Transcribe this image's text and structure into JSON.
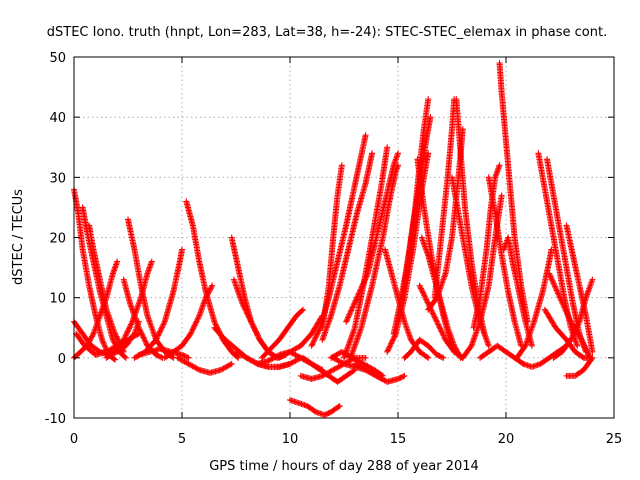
{
  "chart_data": {
    "type": "scatter",
    "title": "dSTEC Iono. truth (hnpt, Lon=283, Lat=38, h=-24): STEC-STEC_elemax in phase cont.",
    "xlabel": "GPS time / hours of day 288 of year 2014",
    "ylabel": "dSTEC  / TECUs",
    "xlim": [
      0,
      25
    ],
    "ylim": [
      -10,
      50
    ],
    "xticks": [
      0,
      5,
      10,
      15,
      20,
      25
    ],
    "yticks": [
      -10,
      0,
      10,
      20,
      30,
      40,
      50
    ],
    "grid": true,
    "marker": "plus",
    "color": "#ff0000",
    "series": [
      {
        "x": [
          0.0,
          0.2,
          0.4,
          0.7,
          1.0,
          1.3,
          1.6,
          1.9
        ],
        "y": [
          28,
          24,
          18,
          12,
          7,
          3,
          0.5,
          -0.3
        ]
      },
      {
        "x": [
          0.4,
          0.6,
          0.9,
          1.2,
          1.5,
          1.8,
          2.1,
          2.4
        ],
        "y": [
          25,
          21,
          16,
          11,
          7,
          3,
          1,
          0
        ]
      },
      {
        "x": [
          0.7,
          0.9,
          1.2,
          1.5,
          1.9,
          2.3
        ],
        "y": [
          22,
          18,
          13,
          8,
          4,
          1
        ]
      },
      {
        "x": [
          0.0,
          0.3,
          0.6,
          0.9,
          1.2,
          1.5,
          1.8,
          2.0
        ],
        "y": [
          0,
          1,
          2,
          4,
          7,
          10,
          14,
          16
        ]
      },
      {
        "x": [
          0.0,
          0.4,
          0.8,
          1.2,
          1.6,
          2.0,
          2.4,
          2.8,
          3.0
        ],
        "y": [
          6,
          4,
          2,
          1,
          0.5,
          1,
          2,
          4,
          6
        ]
      },
      {
        "x": [
          0.1,
          0.5,
          1.0,
          1.5,
          2.0,
          2.5,
          3.0
        ],
        "y": [
          4,
          2,
          0.5,
          1,
          2,
          3,
          4
        ]
      },
      {
        "x": [
          2.5,
          2.8,
          3.1,
          3.4,
          3.8,
          4.2,
          4.6
        ],
        "y": [
          23,
          18,
          12,
          7,
          3,
          1,
          0
        ]
      },
      {
        "x": [
          2.3,
          2.6,
          3.0,
          3.4,
          3.8,
          4.1
        ],
        "y": [
          13,
          9,
          5,
          2,
          0.5,
          0
        ]
      },
      {
        "x": [
          1.5,
          1.9,
          2.3,
          2.7,
          3.1,
          3.4,
          3.6
        ],
        "y": [
          0,
          1,
          3,
          6,
          10,
          14,
          16
        ]
      },
      {
        "x": [
          2.8,
          3.3,
          3.8,
          4.2,
          4.6,
          4.9,
          5.0
        ],
        "y": [
          0,
          1,
          3,
          6,
          11,
          16,
          18
        ]
      },
      {
        "x": [
          3.0,
          3.5,
          4.0,
          4.5,
          5.0,
          5.3
        ],
        "y": [
          0.5,
          1,
          1.5,
          1,
          0.5,
          0
        ]
      },
      {
        "x": [
          5.2,
          5.5,
          5.8,
          6.1,
          6.5,
          6.9,
          7.3,
          7.6
        ],
        "y": [
          26,
          22,
          16,
          11,
          6,
          3,
          1,
          0
        ]
      },
      {
        "x": [
          4.8,
          5.3,
          5.8,
          6.3,
          6.8,
          7.3
        ],
        "y": [
          0,
          -1,
          -2,
          -2.5,
          -2,
          -1
        ]
      },
      {
        "x": [
          4.2,
          4.6,
          5.0,
          5.4,
          5.8,
          6.1,
          6.4
        ],
        "y": [
          0,
          1,
          2,
          4,
          7,
          10,
          12
        ]
      },
      {
        "x": [
          7.3,
          7.6,
          7.9,
          8.2,
          8.6,
          9.0,
          9.4
        ],
        "y": [
          20,
          15,
          10,
          6,
          3,
          1,
          0
        ]
      },
      {
        "x": [
          7.4,
          7.8,
          8.2,
          8.6,
          9.0,
          9.4,
          9.8
        ],
        "y": [
          13,
          9,
          6,
          3,
          1,
          0,
          0.5
        ]
      },
      {
        "x": [
          6.5,
          7.0,
          7.5,
          8.0,
          8.5,
          9.0,
          9.5,
          10.0
        ],
        "y": [
          5,
          3,
          1.5,
          0,
          -1,
          -1.5,
          -1.5,
          -1
        ]
      },
      {
        "x": [
          7.5,
          8.0,
          8.5,
          9.0,
          9.5,
          10.0,
          10.5
        ],
        "y": [
          1,
          0,
          -1,
          -1.5,
          -1.5,
          -1,
          0
        ]
      },
      {
        "x": [
          8.5,
          9.0,
          9.5,
          10.0,
          10.5,
          11.0,
          11.5
        ],
        "y": [
          -1,
          -0.5,
          0.5,
          1,
          0,
          -1,
          -2
        ]
      },
      {
        "x": [
          8.7,
          9.1,
          9.5,
          9.9,
          10.3,
          10.6
        ],
        "y": [
          0,
          1.5,
          3,
          5,
          7,
          8
        ]
      },
      {
        "x": [
          9.5,
          10.0,
          10.5,
          11.0,
          11.5
        ],
        "y": [
          0,
          1,
          2,
          4,
          7
        ]
      },
      {
        "x": [
          10.0,
          10.4,
          10.8,
          11.2,
          11.6,
          11.9,
          12.3
        ],
        "y": [
          -7,
          -7.5,
          -8,
          -9,
          -9.5,
          -9,
          -8
        ]
      },
      {
        "x": [
          10.5,
          11.0,
          11.5,
          12.0,
          12.5,
          13.0,
          13.5
        ],
        "y": [
          -3,
          -3.5,
          -3,
          -2,
          -1,
          0,
          0
        ]
      },
      {
        "x": [
          10.6,
          11.0,
          11.4,
          11.8,
          12.2,
          12.6,
          13.0
        ],
        "y": [
          0,
          -1,
          -2,
          -3,
          -4,
          -3,
          -2
        ]
      },
      {
        "x": [
          11.0,
          11.4,
          11.8,
          12.2,
          12.6,
          12.9,
          13.2,
          13.5
        ],
        "y": [
          2,
          5,
          10,
          16,
          22,
          27,
          32,
          37
        ]
      },
      {
        "x": [
          11.5,
          11.9,
          12.3,
          12.7,
          13.1,
          13.5,
          13.8
        ],
        "y": [
          3,
          7,
          12,
          18,
          24,
          29,
          34
        ]
      },
      {
        "x": [
          11.5,
          11.8,
          12.0,
          12.2,
          12.4
        ],
        "y": [
          5,
          12,
          20,
          27,
          32
        ]
      },
      {
        "x": [
          12.0,
          12.5,
          13.0,
          13.5,
          14.0,
          14.3
        ],
        "y": [
          0,
          -1,
          -1.5,
          -2,
          -3,
          -3.5
        ]
      },
      {
        "x": [
          11.9,
          12.4,
          12.9,
          13.4,
          13.9,
          14.3
        ],
        "y": [
          0,
          1,
          0,
          -1,
          -2,
          -3
        ]
      },
      {
        "x": [
          12.5,
          13.0,
          13.4,
          13.8,
          14.2,
          14.5
        ],
        "y": [
          0,
          5,
          12,
          20,
          28,
          35
        ]
      },
      {
        "x": [
          12.8,
          13.3,
          13.8,
          14.3,
          14.6,
          14.9,
          15.0
        ],
        "y": [
          0,
          5,
          12,
          20,
          26,
          31,
          32
        ]
      },
      {
        "x": [
          12.6,
          13.1,
          13.6,
          14.0,
          14.4,
          14.8,
          15.0
        ],
        "y": [
          6,
          10,
          14,
          20,
          26,
          32,
          34
        ]
      },
      {
        "x": [
          13.0,
          13.5,
          14.0,
          14.5,
          15.0,
          15.3
        ],
        "y": [
          -1,
          -2,
          -3,
          -4,
          -3.5,
          -3
        ]
      },
      {
        "x": [
          14.4,
          14.7,
          15.0,
          15.3,
          15.6,
          16.0,
          16.4
        ],
        "y": [
          18,
          14,
          10,
          6,
          3,
          1,
          0
        ]
      },
      {
        "x": [
          14.5,
          14.9,
          15.3,
          15.7,
          16.1,
          16.4
        ],
        "y": [
          1,
          4,
          10,
          18,
          28,
          34
        ]
      },
      {
        "x": [
          14.8,
          15.1,
          15.4,
          15.7,
          16.0,
          16.3,
          16.5
        ],
        "y": [
          4,
          9,
          15,
          22,
          29,
          36,
          40
        ]
      },
      {
        "x": [
          15.2,
          15.5,
          15.8,
          16.0,
          16.2,
          16.4
        ],
        "y": [
          10,
          17,
          25,
          32,
          38,
          43
        ]
      },
      {
        "x": [
          15.3,
          15.6,
          16.0,
          16.4,
          16.8,
          17.1
        ],
        "y": [
          0,
          1,
          3,
          2,
          0.5,
          0
        ]
      },
      {
        "x": [
          15.9,
          16.2,
          16.5,
          16.8,
          17.1,
          17.4,
          17.6
        ],
        "y": [
          33,
          25,
          18,
          12,
          7,
          3,
          1
        ]
      },
      {
        "x": [
          16.1,
          16.4,
          16.7,
          17.0,
          17.3,
          17.6,
          17.9
        ],
        "y": [
          20,
          17,
          13,
          9,
          5,
          2,
          0
        ]
      },
      {
        "x": [
          16.0,
          16.4,
          16.8,
          17.2,
          17.6,
          18.0
        ],
        "y": [
          12,
          9,
          6,
          3,
          1,
          0
        ]
      },
      {
        "x": [
          16.4,
          16.8,
          17.2,
          17.5,
          17.8,
          18.0
        ],
        "y": [
          8,
          10,
          14,
          20,
          30,
          38
        ]
      },
      {
        "x": [
          16.7,
          17.0,
          17.3,
          17.5,
          17.6
        ],
        "y": [
          10,
          20,
          30,
          38,
          43
        ]
      },
      {
        "x": [
          17.7,
          17.9,
          18.1,
          18.4,
          18.7,
          19.0
        ],
        "y": [
          43,
          34,
          25,
          16,
          9,
          4
        ]
      },
      {
        "x": [
          17.5,
          17.8,
          18.1,
          18.4,
          18.8,
          19.2
        ],
        "y": [
          30,
          24,
          18,
          12,
          6,
          2
        ]
      },
      {
        "x": [
          18.0,
          18.4,
          18.8,
          19.2,
          19.5,
          19.8
        ],
        "y": [
          0,
          2,
          6,
          12,
          20,
          27
        ]
      },
      {
        "x": [
          18.5,
          18.8,
          19.1,
          19.3,
          19.5,
          19.7
        ],
        "y": [
          5,
          10,
          18,
          25,
          30,
          32
        ]
      },
      {
        "x": [
          19.2,
          19.5,
          19.8,
          20.1,
          20.4,
          20.7
        ],
        "y": [
          30,
          24,
          17,
          11,
          6,
          2
        ]
      },
      {
        "x": [
          19.7,
          19.8,
          20.0,
          20.2,
          20.4,
          20.7,
          21.0
        ],
        "y": [
          49,
          44,
          36,
          28,
          20,
          12,
          6
        ]
      },
      {
        "x": [
          19.9,
          20.1,
          20.3,
          20.6,
          20.9,
          21.2
        ],
        "y": [
          18,
          20,
          16,
          11,
          6,
          2
        ]
      },
      {
        "x": [
          18.8,
          19.2,
          19.6,
          20.0,
          20.4,
          20.8
        ],
        "y": [
          0,
          1,
          2,
          1,
          0,
          -1
        ]
      },
      {
        "x": [
          20.5,
          20.9,
          21.3,
          21.7,
          22.0,
          22.1
        ],
        "y": [
          0,
          2,
          6,
          11,
          16,
          18
        ]
      },
      {
        "x": [
          20.8,
          21.2,
          21.6,
          22.0,
          22.4,
          22.8
        ],
        "y": [
          -1,
          -1.5,
          -1,
          0,
          1,
          2
        ]
      },
      {
        "x": [
          21.5,
          21.8,
          22.1,
          22.4,
          22.7,
          23.0,
          23.3
        ],
        "y": [
          34,
          28,
          22,
          16,
          10,
          5,
          2
        ]
      },
      {
        "x": [
          21.9,
          22.2,
          22.5,
          22.8,
          23.1,
          23.4,
          23.7
        ],
        "y": [
          33,
          27,
          21,
          15,
          9,
          4,
          1
        ]
      },
      {
        "x": [
          22.0,
          22.5,
          23.0,
          23.5,
          23.9
        ],
        "y": [
          14,
          10,
          6,
          3,
          0
        ]
      },
      {
        "x": [
          22.2,
          22.6,
          23.0,
          23.4,
          23.7,
          24.0
        ],
        "y": [
          0,
          1,
          3,
          6,
          10,
          13
        ]
      },
      {
        "x": [
          22.8,
          23.1,
          23.4,
          23.7,
          24.0
        ],
        "y": [
          22,
          17,
          12,
          7,
          1
        ]
      },
      {
        "x": [
          22.8,
          23.2,
          23.6,
          24.0
        ],
        "y": [
          -3,
          -3,
          -2,
          0
        ]
      },
      {
        "x": [
          21.8,
          22.3,
          22.8,
          23.2,
          23.6,
          23.9
        ],
        "y": [
          8,
          5,
          3,
          1,
          0,
          0
        ]
      }
    ]
  }
}
